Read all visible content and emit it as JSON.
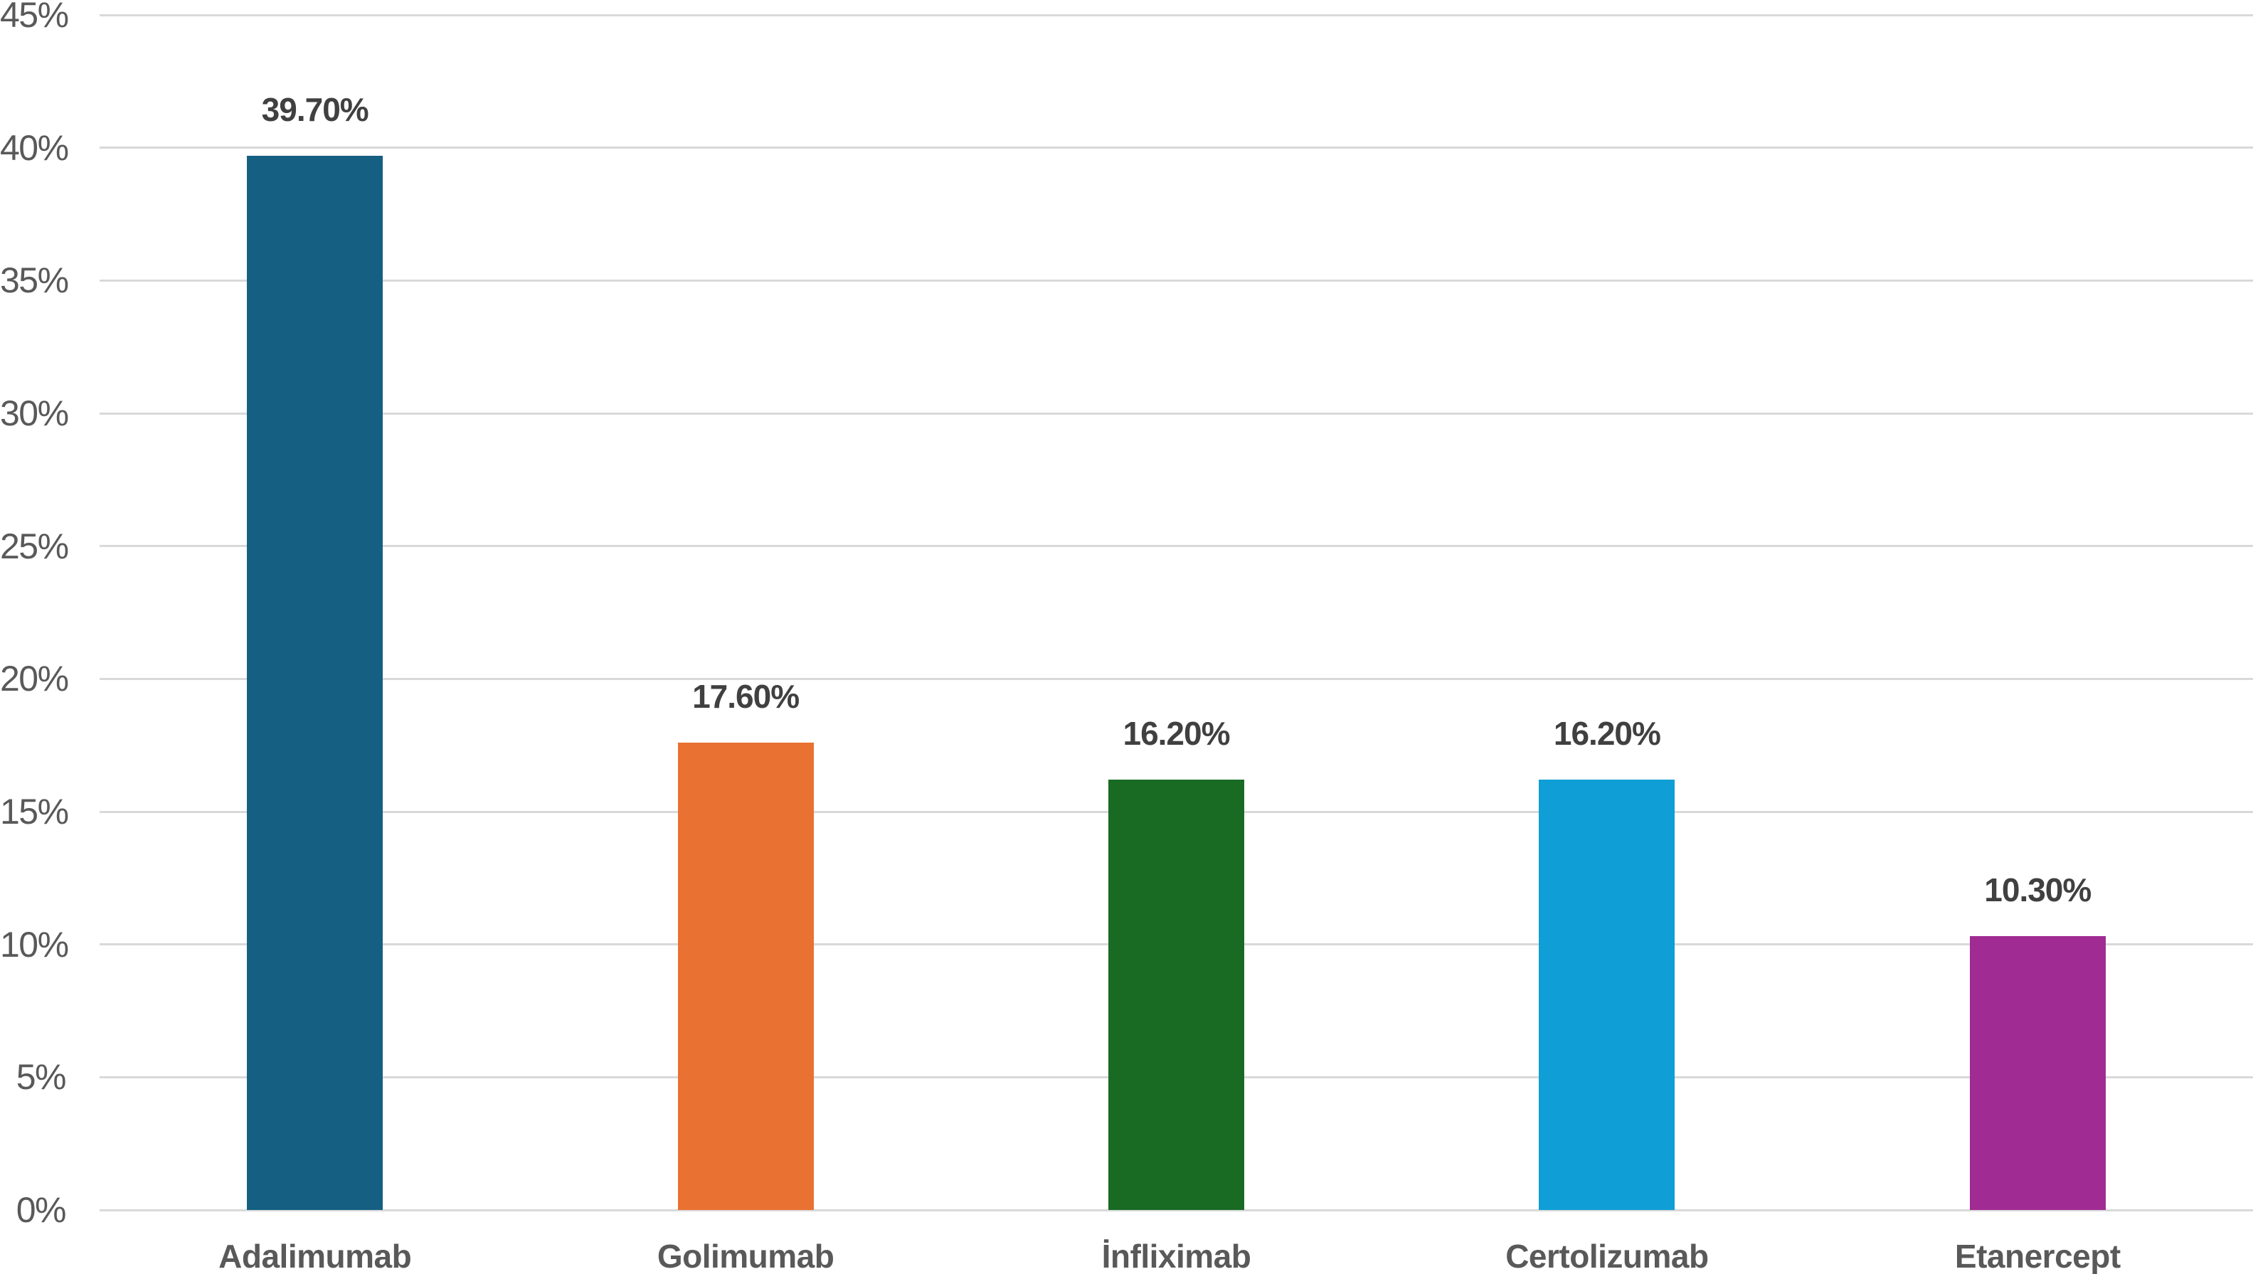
{
  "chart_data": {
    "type": "bar",
    "categories": [
      "Adalimumab",
      "Golimumab",
      "İnfliximab",
      "Certolizumab",
      "Etanercept"
    ],
    "values": [
      39.7,
      17.6,
      16.2,
      16.2,
      10.3
    ],
    "value_labels": [
      "39.70%",
      "17.60%",
      "16.20%",
      "16.20%",
      "10.30%"
    ],
    "bar_colors": [
      "#156082",
      "#E97132",
      "#196B24",
      "#0F9ED5",
      "#A02B93"
    ],
    "title": "",
    "xlabel": "",
    "ylabel": "",
    "ylim": [
      0,
      45
    ],
    "ytick_step": 5,
    "ytick_labels": [
      "0%",
      "5%",
      "10%",
      "15%",
      "20%",
      "25%",
      "30%",
      "35%",
      "40%",
      "45%"
    ],
    "grid": true,
    "legend": false
  },
  "colors": {
    "background": "#FFFFFF",
    "gridline": "#D9D9D9",
    "tick_label": "#595959",
    "category_label": "#595959",
    "value_label": "#404040"
  }
}
